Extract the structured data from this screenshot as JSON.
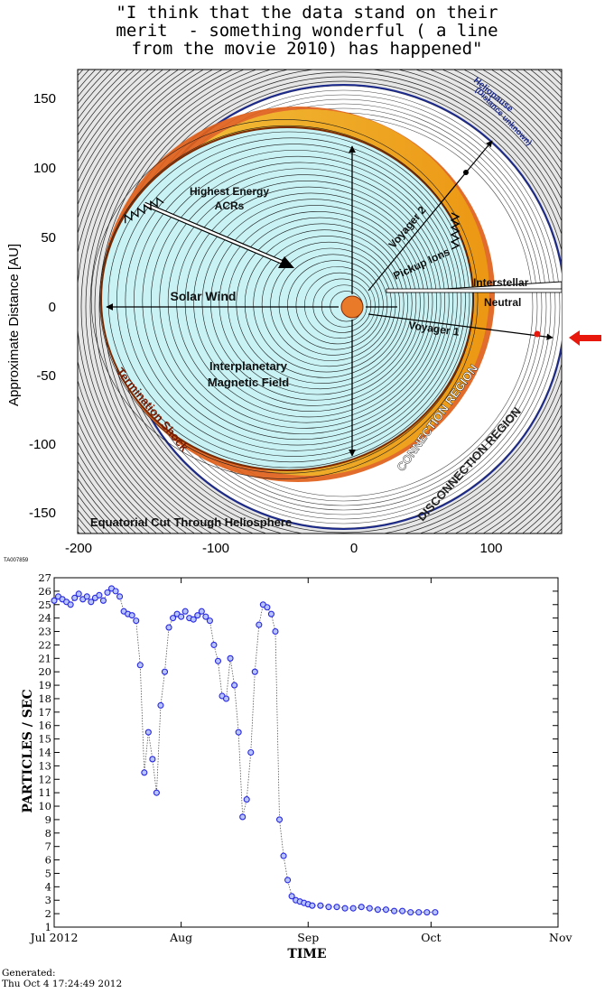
{
  "quote": {
    "line1": "\"I think that the data stand on their",
    "line2": "merit  - something wonderful ( a line",
    "line3": "from the movie 2010) has happened\""
  },
  "helio": {
    "ylabel": "Approximate Distance [AU]",
    "yticks": [
      "150",
      "100",
      "50",
      "0",
      "-50",
      "-100",
      "-150"
    ],
    "xticks": [
      "-200",
      "-100",
      "0",
      "100"
    ],
    "code": "TA007859",
    "heliopause_1": "Heliopause",
    "heliopause_2": "(Distance unknown)",
    "highest_energy_1": "Highest Energy",
    "highest_energy_2": "ACRs",
    "solar_wind": "Solar Wind",
    "imf_1": "Interplanetary",
    "imf_2": "Magnetic Field",
    "voyager2": "Voyager 2",
    "pickup_ions": "Pickup Ions",
    "interstellar": "Interstellar",
    "neutral": "Neutral",
    "voyager1": "Voyager 1",
    "termination_shock": "Termination Shock",
    "connection": "CONNECTION REGION",
    "disconnection": "DISCONNECTION REGION",
    "equatorial": "Equatorial Cut Through Heliosphere",
    "colors": {
      "sky": "#c8f2f4",
      "orange": "#e0601a",
      "yellow": "#f2c61a",
      "navy": "#1c2a8c",
      "arrow": "#e8180c"
    }
  },
  "chart_data": {
    "type": "scatter",
    "ylabel": "PARTICLES / SEC",
    "xlabel": "TIME",
    "x_tick_labels": [
      "Jul 2012",
      "Aug",
      "Sep",
      "Oct",
      "Nov"
    ],
    "x_tick_dates": [
      "2012-07-01",
      "2012-08-01",
      "2012-09-01",
      "2012-10-01",
      "2012-11-01"
    ],
    "xlim": [
      "2012-07-01",
      "2012-11-01"
    ],
    "ylim": [
      1,
      27
    ],
    "yticks": [
      1,
      2,
      3,
      4,
      5,
      6,
      7,
      8,
      9,
      10,
      11,
      12,
      13,
      14,
      15,
      16,
      17,
      18,
      19,
      20,
      21,
      22,
      23,
      24,
      25,
      26,
      27
    ],
    "marker_color": "#2828e0",
    "series": [
      {
        "x": [
          "2012-07-01",
          "2012-07-02",
          "2012-07-03",
          "2012-07-04",
          "2012-07-05",
          "2012-07-06",
          "2012-07-07",
          "2012-07-08",
          "2012-07-09",
          "2012-07-10",
          "2012-07-11",
          "2012-07-12",
          "2012-07-13",
          "2012-07-14",
          "2012-07-15",
          "2012-07-16",
          "2012-07-17",
          "2012-07-18",
          "2012-07-19",
          "2012-07-20",
          "2012-07-21",
          "2012-07-22",
          "2012-07-23",
          "2012-07-24",
          "2012-07-25",
          "2012-07-26",
          "2012-07-27",
          "2012-07-28",
          "2012-07-29",
          "2012-07-30",
          "2012-07-31",
          "2012-08-01",
          "2012-08-02",
          "2012-08-03",
          "2012-08-04",
          "2012-08-05",
          "2012-08-06",
          "2012-08-07",
          "2012-08-08",
          "2012-08-09",
          "2012-08-10",
          "2012-08-11",
          "2012-08-12",
          "2012-08-13",
          "2012-08-14",
          "2012-08-15",
          "2012-08-16",
          "2012-08-17",
          "2012-08-18",
          "2012-08-19",
          "2012-08-20",
          "2012-08-21",
          "2012-08-22",
          "2012-08-23",
          "2012-08-24",
          "2012-08-25",
          "2012-08-26",
          "2012-08-27",
          "2012-08-28",
          "2012-08-29",
          "2012-08-30",
          "2012-08-31",
          "2012-09-01",
          "2012-09-02",
          "2012-09-04",
          "2012-09-06",
          "2012-09-08",
          "2012-09-10",
          "2012-09-12",
          "2012-09-14",
          "2012-09-16",
          "2012-09-18",
          "2012-09-20",
          "2012-09-22",
          "2012-09-24",
          "2012-09-26",
          "2012-09-28",
          "2012-09-30",
          "2012-10-02"
        ],
        "y": [
          25.3,
          25.6,
          25.4,
          25.2,
          25.0,
          25.5,
          25.8,
          25.4,
          25.6,
          25.2,
          25.5,
          25.7,
          25.3,
          25.9,
          26.2,
          26.0,
          25.6,
          24.5,
          24.3,
          24.2,
          23.8,
          20.5,
          12.5,
          15.5,
          13.5,
          11.0,
          17.5,
          20.0,
          23.3,
          24.0,
          24.3,
          24.1,
          24.5,
          24.0,
          23.9,
          24.2,
          24.5,
          24.1,
          23.8,
          22.0,
          20.8,
          18.2,
          18.0,
          21.0,
          19.0,
          15.5,
          9.2,
          10.5,
          14.0,
          20.0,
          23.5,
          25.0,
          24.8,
          24.3,
          23.0,
          9.0,
          6.3,
          4.5,
          3.3,
          3.0,
          2.9,
          2.8,
          2.7,
          2.6,
          2.6,
          2.5,
          2.5,
          2.4,
          2.4,
          2.5,
          2.4,
          2.3,
          2.3,
          2.2,
          2.2,
          2.1,
          2.1,
          2.1,
          2.1
        ]
      }
    ]
  },
  "footer": {
    "line1": "Generated:",
    "line2": "Thu Oct  4 17:24:49 2012"
  }
}
